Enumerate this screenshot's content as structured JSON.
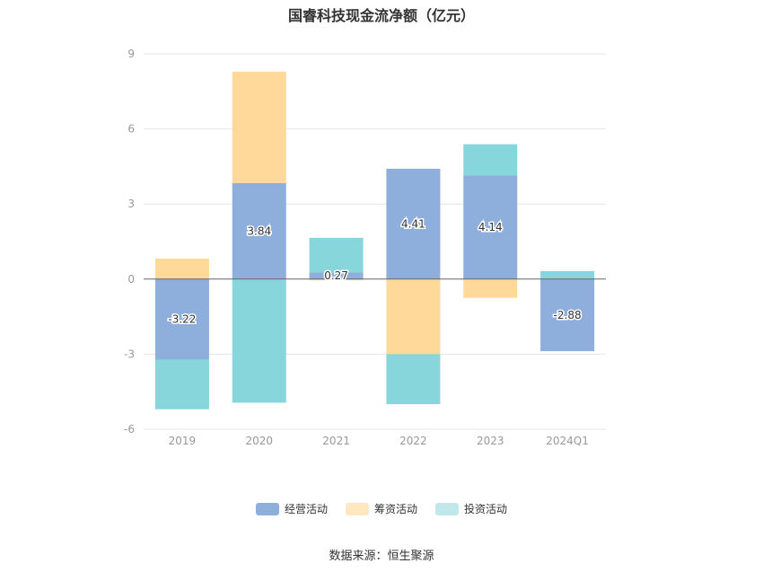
{
  "chart_data": {
    "type": "bar",
    "stacked": true,
    "title": "国睿科技现金流净额（亿元）",
    "categories": [
      "2019",
      "2020",
      "2021",
      "2022",
      "2023",
      "2024Q1"
    ],
    "ylim": [
      -6,
      9
    ],
    "yticks": [
      "9",
      "6",
      "3",
      "0",
      "-3",
      "-6"
    ],
    "grid": true,
    "legend_position": "bottom",
    "series": [
      {
        "name": "经营活动",
        "color": "#8eaedc",
        "values": [
          -3.22,
          3.84,
          0.27,
          4.41,
          4.14,
          -2.88
        ],
        "labels": [
          "-3.22",
          "3.84",
          "0.27",
          "4.41",
          "4.14",
          "-2.88"
        ]
      },
      {
        "name": "筹资活动",
        "color": "#ffd99a",
        "values": [
          0.82,
          4.45,
          -0.05,
          -3.0,
          -0.75,
          0.0
        ]
      },
      {
        "name": "投资活动",
        "color": "#86d6db",
        "values": [
          -1.98,
          -4.94,
          1.38,
          -2.0,
          1.25,
          0.32
        ]
      }
    ]
  },
  "source": "数据来源：恒生聚源"
}
